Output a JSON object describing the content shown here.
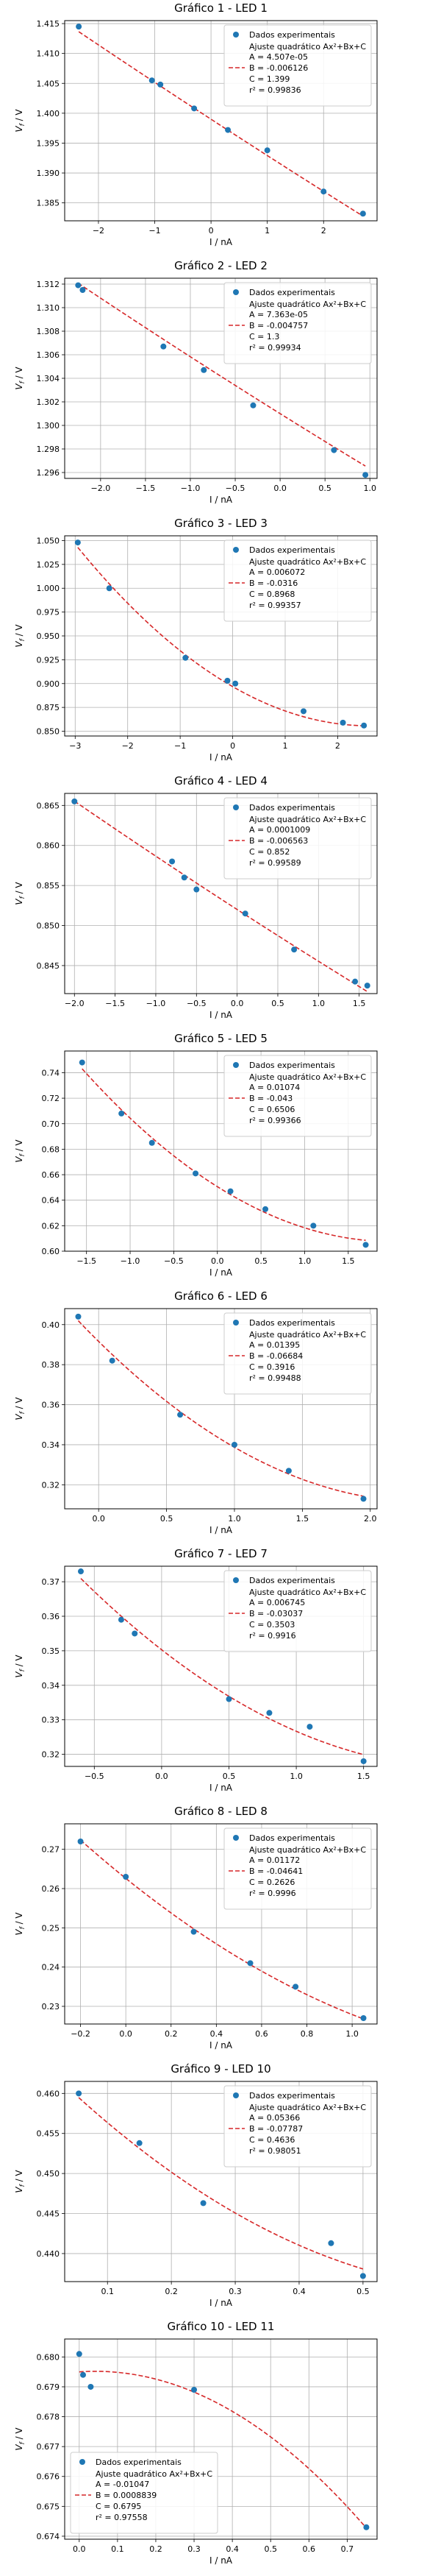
{
  "fit_color": "#d62728",
  "point_color": "#1f77b4",
  "chart_data": [
    {
      "type": "scatter",
      "title": "Gráfico 1 - LED 1",
      "xlabel": "I / nA",
      "ylabel": "V_f / V",
      "xlim": [
        -2.6,
        2.95
      ],
      "ylim": [
        1.382,
        1.4155
      ],
      "xticks": [
        -2,
        -1,
        0,
        1,
        2
      ],
      "yticks": [
        1.385,
        1.39,
        1.395,
        1.4,
        1.405,
        1.41,
        1.415
      ],
      "legend_position": "top-right",
      "points": {
        "x": [
          -2.35,
          -1.05,
          -0.9,
          -0.3,
          0.3,
          1.0,
          2.0,
          2.7
        ],
        "y": [
          1.4145,
          1.4055,
          1.4048,
          1.4008,
          1.3972,
          1.3938,
          1.3869,
          1.3832
        ]
      },
      "fit": {
        "A": "4.507e-05",
        "B": "-0.006126",
        "C": "1.399",
        "r2": "0.99836",
        "a": 4.507e-05,
        "b": -0.006126,
        "c": 1.399,
        "x_range": [
          -2.35,
          2.7
        ]
      },
      "legend": {
        "points_label": "Dados experimentais",
        "fit_label": "Ajuste quadrático Ax²+Bx+C"
      }
    },
    {
      "type": "scatter",
      "title": "Gráfico 2 - LED 2",
      "xlabel": "I / nA",
      "ylabel": "V_f / V",
      "xlim": [
        -2.4,
        1.08
      ],
      "ylim": [
        1.2955,
        1.3125
      ],
      "xticks": [
        -2.0,
        -1.5,
        -1.0,
        -0.5,
        0.0,
        0.5,
        1.0
      ],
      "yticks": [
        1.296,
        1.298,
        1.3,
        1.302,
        1.304,
        1.306,
        1.308,
        1.31,
        1.312
      ],
      "legend_position": "top-right",
      "points": {
        "x": [
          -2.25,
          -2.2,
          -1.3,
          -0.85,
          -0.3,
          0.6,
          0.95
        ],
        "y": [
          1.3119,
          1.3115,
          1.3067,
          1.3047,
          1.3017,
          1.2979,
          1.2958
        ]
      },
      "fit": {
        "A": "7.363e-05",
        "B": "-0.004757",
        "C": "1.3",
        "r2": "0.99934",
        "a": 7.363e-05,
        "b": -0.004757,
        "c": 1.301,
        "x_range": [
          -2.25,
          0.95
        ]
      },
      "legend": {
        "points_label": "Dados experimentais",
        "fit_label": "Ajuste quadrático Ax²+Bx+C"
      }
    },
    {
      "type": "scatter",
      "title": "Gráfico 3 - LED 3",
      "xlabel": "I / nA",
      "ylabel": "V_f / V",
      "xlim": [
        -3.2,
        2.75
      ],
      "ylim": [
        0.845,
        1.055
      ],
      "xticks": [
        -3,
        -2,
        -1,
        0,
        1,
        2
      ],
      "yticks": [
        0.85,
        0.875,
        0.9,
        0.925,
        0.95,
        0.975,
        1.0,
        1.025,
        1.05
      ],
      "legend_position": "top-right",
      "points": {
        "x": [
          -2.95,
          -2.35,
          -0.9,
          -0.1,
          0.05,
          1.35,
          2.1,
          2.5
        ],
        "y": [
          1.048,
          1.0,
          0.927,
          0.903,
          0.9,
          0.871,
          0.859,
          0.856
        ]
      },
      "fit": {
        "A": "0.006072",
        "B": "-0.0316",
        "C": "0.8968",
        "r2": "0.99357",
        "a": 0.006072,
        "b": -0.0316,
        "c": 0.8968,
        "x_range": [
          -2.95,
          2.5
        ]
      },
      "legend": {
        "points_label": "Dados experimentais",
        "fit_label": "Ajuste quadrático Ax²+Bx+C"
      }
    },
    {
      "type": "scatter",
      "title": "Gráfico 4 - LED 4",
      "xlabel": "I / nA",
      "ylabel": "V_f / V",
      "xlim": [
        -2.12,
        1.72
      ],
      "ylim": [
        0.8415,
        0.8665
      ],
      "xticks": [
        -2.0,
        -1.5,
        -1.0,
        -0.5,
        0.0,
        0.5,
        1.0,
        1.5
      ],
      "yticks": [
        0.845,
        0.85,
        0.855,
        0.86,
        0.865
      ],
      "legend_position": "top-right",
      "points": {
        "x": [
          -2.0,
          -0.8,
          -0.65,
          -0.5,
          0.1,
          0.7,
          1.45,
          1.6
        ],
        "y": [
          0.8655,
          0.858,
          0.856,
          0.8545,
          0.8515,
          0.847,
          0.843,
          0.8425
        ]
      },
      "fit": {
        "A": "0.0001009",
        "B": "-0.006563",
        "C": "0.852",
        "r2": "0.99589",
        "a": 0.0001009,
        "b": -0.006563,
        "c": 0.852,
        "x_range": [
          -2.0,
          1.6
        ]
      },
      "legend": {
        "points_label": "Dados experimentais",
        "fit_label": "Ajuste quadrático Ax²+Bx+C"
      }
    },
    {
      "type": "scatter",
      "title": "Gráfico 5 - LED 5",
      "xlabel": "I / nA",
      "ylabel": "V_f / V",
      "xlim": [
        -1.75,
        1.83
      ],
      "ylim": [
        0.6,
        0.757
      ],
      "xticks": [
        -1.5,
        -1.0,
        -0.5,
        0.0,
        0.5,
        1.0,
        1.5
      ],
      "yticks": [
        0.6,
        0.62,
        0.64,
        0.66,
        0.68,
        0.7,
        0.72,
        0.74
      ],
      "legend_position": "top-right",
      "points": {
        "x": [
          -1.55,
          -1.1,
          -0.75,
          -0.25,
          0.15,
          0.55,
          1.1,
          1.7
        ],
        "y": [
          0.748,
          0.708,
          0.685,
          0.661,
          0.647,
          0.633,
          0.62,
          0.605
        ]
      },
      "fit": {
        "A": "0.01074",
        "B": "-0.043",
        "C": "0.6506",
        "r2": "0.99366",
        "a": 0.01074,
        "b": -0.043,
        "c": 0.6506,
        "x_range": [
          -1.55,
          1.7
        ]
      },
      "legend": {
        "points_label": "Dados experimentais",
        "fit_label": "Ajuste quadrático Ax²+Bx+C"
      }
    },
    {
      "type": "scatter",
      "title": "Gráfico 6 - LED 6",
      "xlabel": "I / nA",
      "ylabel": "V_f / V",
      "xlim": [
        -0.25,
        2.05
      ],
      "ylim": [
        0.308,
        0.408
      ],
      "xticks": [
        0.0,
        0.5,
        1.0,
        1.5,
        2.0
      ],
      "yticks": [
        0.32,
        0.34,
        0.36,
        0.38,
        0.4
      ],
      "legend_position": "top-right",
      "points": {
        "x": [
          -0.15,
          0.1,
          0.6,
          1.0,
          1.4,
          1.95
        ],
        "y": [
          0.404,
          0.382,
          0.355,
          0.34,
          0.327,
          0.313
        ]
      },
      "fit": {
        "A": "0.01395",
        "B": "-0.06684",
        "C": "0.3916",
        "r2": "0.99488",
        "a": 0.01395,
        "b": -0.06684,
        "c": 0.3916,
        "x_range": [
          -0.15,
          1.95
        ]
      },
      "legend": {
        "points_label": "Dados experimentais",
        "fit_label": "Ajuste quadrático Ax²+Bx+C"
      }
    },
    {
      "type": "scatter",
      "title": "Gráfico 7 - LED 7",
      "xlabel": "I / nA",
      "ylabel": "V_f / V",
      "xlim": [
        -0.72,
        1.6
      ],
      "ylim": [
        0.3165,
        0.3745
      ],
      "xticks": [
        -0.5,
        0.0,
        0.5,
        1.0,
        1.5
      ],
      "yticks": [
        0.32,
        0.33,
        0.34,
        0.35,
        0.36,
        0.37
      ],
      "legend_position": "top-right",
      "points": {
        "x": [
          -0.6,
          -0.3,
          -0.2,
          0.5,
          0.8,
          1.1,
          1.5
        ],
        "y": [
          0.373,
          0.359,
          0.355,
          0.336,
          0.332,
          0.328,
          0.318
        ]
      },
      "fit": {
        "A": "0.006745",
        "B": "-0.03037",
        "C": "0.3503",
        "r2": "0.9916",
        "a": 0.006745,
        "b": -0.03037,
        "c": 0.3503,
        "x_range": [
          -0.6,
          1.5
        ]
      },
      "legend": {
        "points_label": "Dados experimentais",
        "fit_label": "Ajuste quadrático Ax²+Bx+C"
      }
    },
    {
      "type": "scatter",
      "title": "Gráfico 8 - LED 8",
      "xlabel": "I / nA",
      "ylabel": "V_f / V",
      "xlim": [
        -0.27,
        1.11
      ],
      "ylim": [
        0.2255,
        0.2765
      ],
      "xticks": [
        -0.2,
        0.0,
        0.2,
        0.4,
        0.6,
        0.8,
        1.0
      ],
      "yticks": [
        0.23,
        0.24,
        0.25,
        0.26,
        0.27
      ],
      "legend_position": "top-right",
      "points": {
        "x": [
          -0.2,
          0.0,
          0.3,
          0.55,
          0.75,
          1.05
        ],
        "y": [
          0.272,
          0.263,
          0.249,
          0.241,
          0.235,
          0.227
        ]
      },
      "fit": {
        "A": "0.01172",
        "B": "-0.04641",
        "C": "0.2626",
        "r2": "0.9996",
        "a": 0.01172,
        "b": -0.04641,
        "c": 0.2626,
        "x_range": [
          -0.2,
          1.05
        ]
      },
      "legend": {
        "points_label": "Dados experimentais",
        "fit_label": "Ajuste quadrático Ax²+Bx+C"
      }
    },
    {
      "type": "scatter",
      "title": "Gráfico 9 - LED 10",
      "xlabel": "I / nA",
      "ylabel": "V_f / V",
      "xlim": [
        0.033,
        0.522
      ],
      "ylim": [
        0.4365,
        0.4615
      ],
      "xticks": [
        0.1,
        0.2,
        0.3,
        0.4,
        0.5
      ],
      "yticks": [
        0.44,
        0.445,
        0.45,
        0.455,
        0.46
      ],
      "legend_position": "top-right",
      "points": {
        "x": [
          0.055,
          0.15,
          0.25,
          0.45,
          0.5
        ],
        "y": [
          0.46,
          0.4538,
          0.4463,
          0.4413,
          0.4372
        ]
      },
      "fit": {
        "A": "0.05366",
        "B": "-0.07787",
        "C": "0.4636",
        "r2": "0.98051",
        "a": 0.05366,
        "b": -0.07787,
        "c": 0.4636,
        "x_range": [
          0.055,
          0.5
        ]
      },
      "legend": {
        "points_label": "Dados experimentais",
        "fit_label": "Ajuste quadrático Ax²+Bx+C"
      }
    },
    {
      "type": "scatter",
      "title": "Gráfico 10 - LED 11",
      "xlabel": "I / nA",
      "ylabel": "V_f / V",
      "xlim": [
        -0.038,
        0.778
      ],
      "ylim": [
        0.6739,
        0.6806
      ],
      "xticks": [
        0.0,
        0.1,
        0.2,
        0.3,
        0.4,
        0.5,
        0.6,
        0.7
      ],
      "yticks": [
        0.674,
        0.675,
        0.676,
        0.677,
        0.678,
        0.679,
        0.68
      ],
      "legend_position": "lower-left",
      "points": {
        "x": [
          0.0,
          0.01,
          0.03,
          0.3,
          0.75
        ],
        "y": [
          0.6801,
          0.6794,
          0.679,
          0.6789,
          0.6743
        ]
      },
      "fit": {
        "A": "-0.01047",
        "B": "0.0008839",
        "C": "0.6795",
        "r2": "0.97558",
        "a": -0.01047,
        "b": 0.0008839,
        "c": 0.6795,
        "x_range": [
          0.0,
          0.75
        ]
      },
      "legend": {
        "points_label": "Dados experimentais",
        "fit_label": "Ajuste quadrático Ax²+Bx+C"
      }
    }
  ]
}
